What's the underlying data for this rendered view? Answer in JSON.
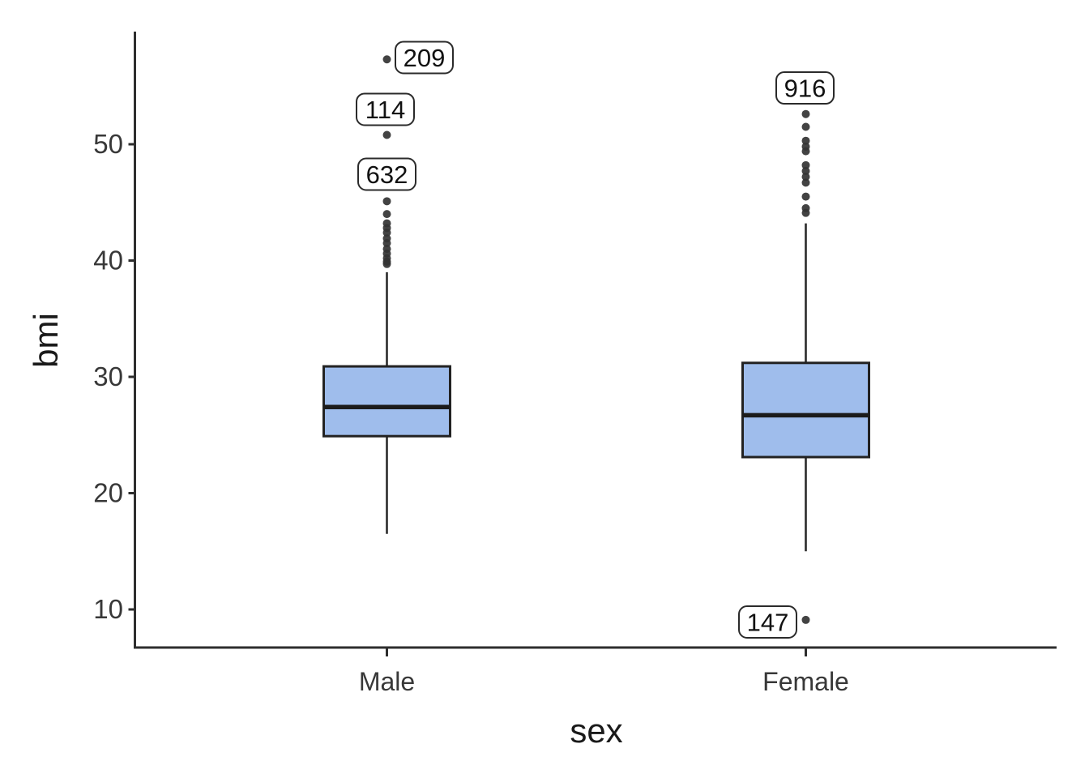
{
  "chart_data": {
    "type": "boxplot",
    "title": "",
    "xlabel": "sex",
    "ylabel": "bmi",
    "categories": [
      "Male",
      "Female"
    ],
    "y_ticks": [
      10,
      20,
      30,
      40,
      50
    ],
    "ylim": [
      6.7,
      59.7
    ],
    "grid": "off",
    "legend": "none",
    "series": [
      {
        "category": "Male",
        "q1": 24.9,
        "median": 27.4,
        "q3": 30.9,
        "whisker_low": 16.5,
        "whisker_high": 39.0,
        "outliers": [
          57.3,
          50.8,
          45.1,
          44.0,
          43.2,
          42.8,
          42.4,
          41.9,
          41.5,
          41.0,
          40.6,
          40.2,
          39.9,
          39.7
        ],
        "outlier_labels": [
          {
            "text": "209",
            "at_value": 57.3,
            "label_value": 57.46,
            "dx": 46
          },
          {
            "text": "114",
            "at_value": 50.8,
            "label_value": 53.0,
            "dx": -2
          },
          {
            "text": "632",
            "at_value": 45.1,
            "label_value": 47.42,
            "dx": 0
          }
        ]
      },
      {
        "category": "Female",
        "q1": 23.1,
        "median": 26.7,
        "q3": 31.2,
        "whisker_low": 15.0,
        "whisker_high": 43.2,
        "outliers": [
          52.6,
          51.5,
          50.3,
          49.8,
          49.4,
          48.2,
          47.7,
          47.2,
          46.7,
          45.5,
          44.5,
          44.1,
          9.1
        ],
        "outlier_labels": [
          {
            "text": "916",
            "at_value": 52.6,
            "label_value": 54.84,
            "dx": -1
          },
          {
            "text": "147",
            "at_value": 9.1,
            "label_value": 8.92,
            "dx": -47
          }
        ]
      }
    ],
    "colors": {
      "box_fill": "#9fbdec",
      "box_stroke": "#222222",
      "median_stroke": "#1b1b1b",
      "whisker_stroke": "#2b2b2b",
      "outlier_point": "#333333",
      "axis_line": "#2e2e2e",
      "tick_text": "#383838",
      "title_text": "#1a1a1a",
      "label_bg": "#ffffff",
      "label_border": "#2b2b2b",
      "background": "#ffffff"
    }
  }
}
